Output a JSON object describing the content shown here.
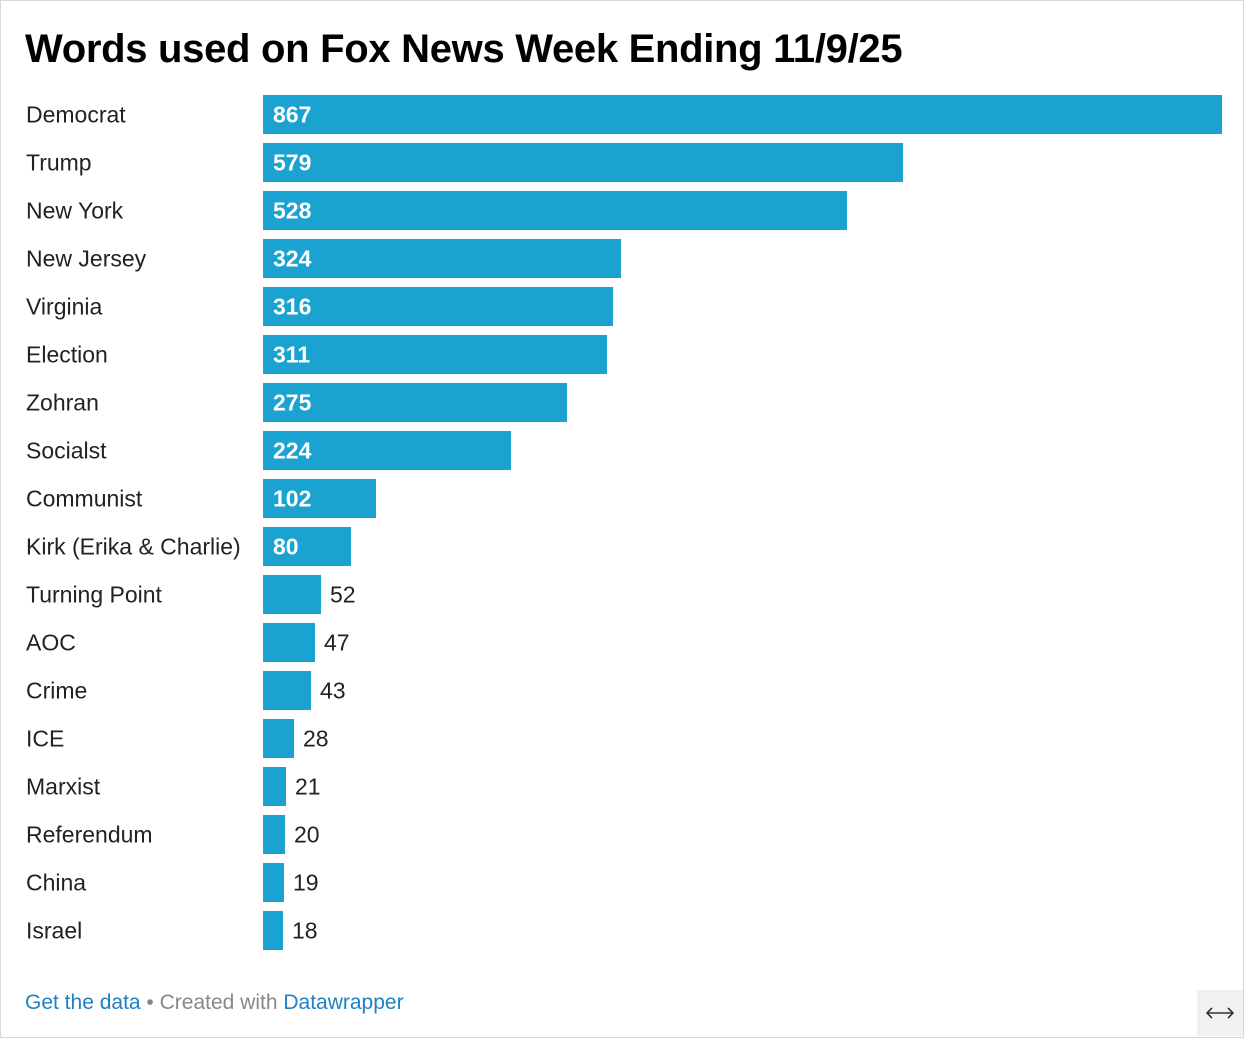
{
  "title": "Words used on Fox News Week Ending 11/9/25",
  "chart_data": {
    "type": "bar",
    "orientation": "horizontal",
    "title": "Words used on Fox News Week Ending 11/9/25",
    "xlabel": "",
    "ylabel": "",
    "xlim": [
      0,
      867
    ],
    "grid": false,
    "bar_color": "#1aa3d1",
    "categories": [
      "Democrat",
      "Trump",
      "New York",
      "New Jersey",
      "Virginia",
      "Election",
      "Zohran",
      "Socialst",
      "Communist",
      "Kirk (Erika & Charlie)",
      "Turning Point",
      "AOC",
      "Crime",
      "ICE",
      "Marxist",
      "Referendum",
      "China",
      "Israel"
    ],
    "values": [
      867,
      579,
      528,
      324,
      316,
      311,
      275,
      224,
      102,
      80,
      52,
      47,
      43,
      28,
      21,
      20,
      19,
      18
    ],
    "value_labels": [
      "867",
      "579",
      "528",
      "324",
      "316",
      "311",
      "275",
      "224",
      "102",
      "80",
      "52",
      "47",
      "43",
      "28",
      "21",
      "20",
      "19",
      "18"
    ]
  },
  "footer": {
    "get_data": "Get the data",
    "separator": " • ",
    "created_with": "Created with ",
    "datawrapper": "Datawrapper"
  },
  "icons": {
    "expand": "horizontal-arrows-icon"
  },
  "colors": {
    "bar": "#1aa3d1",
    "link": "#1d81c3",
    "text_inside": "#ffffff",
    "text_outside": "#222222"
  }
}
